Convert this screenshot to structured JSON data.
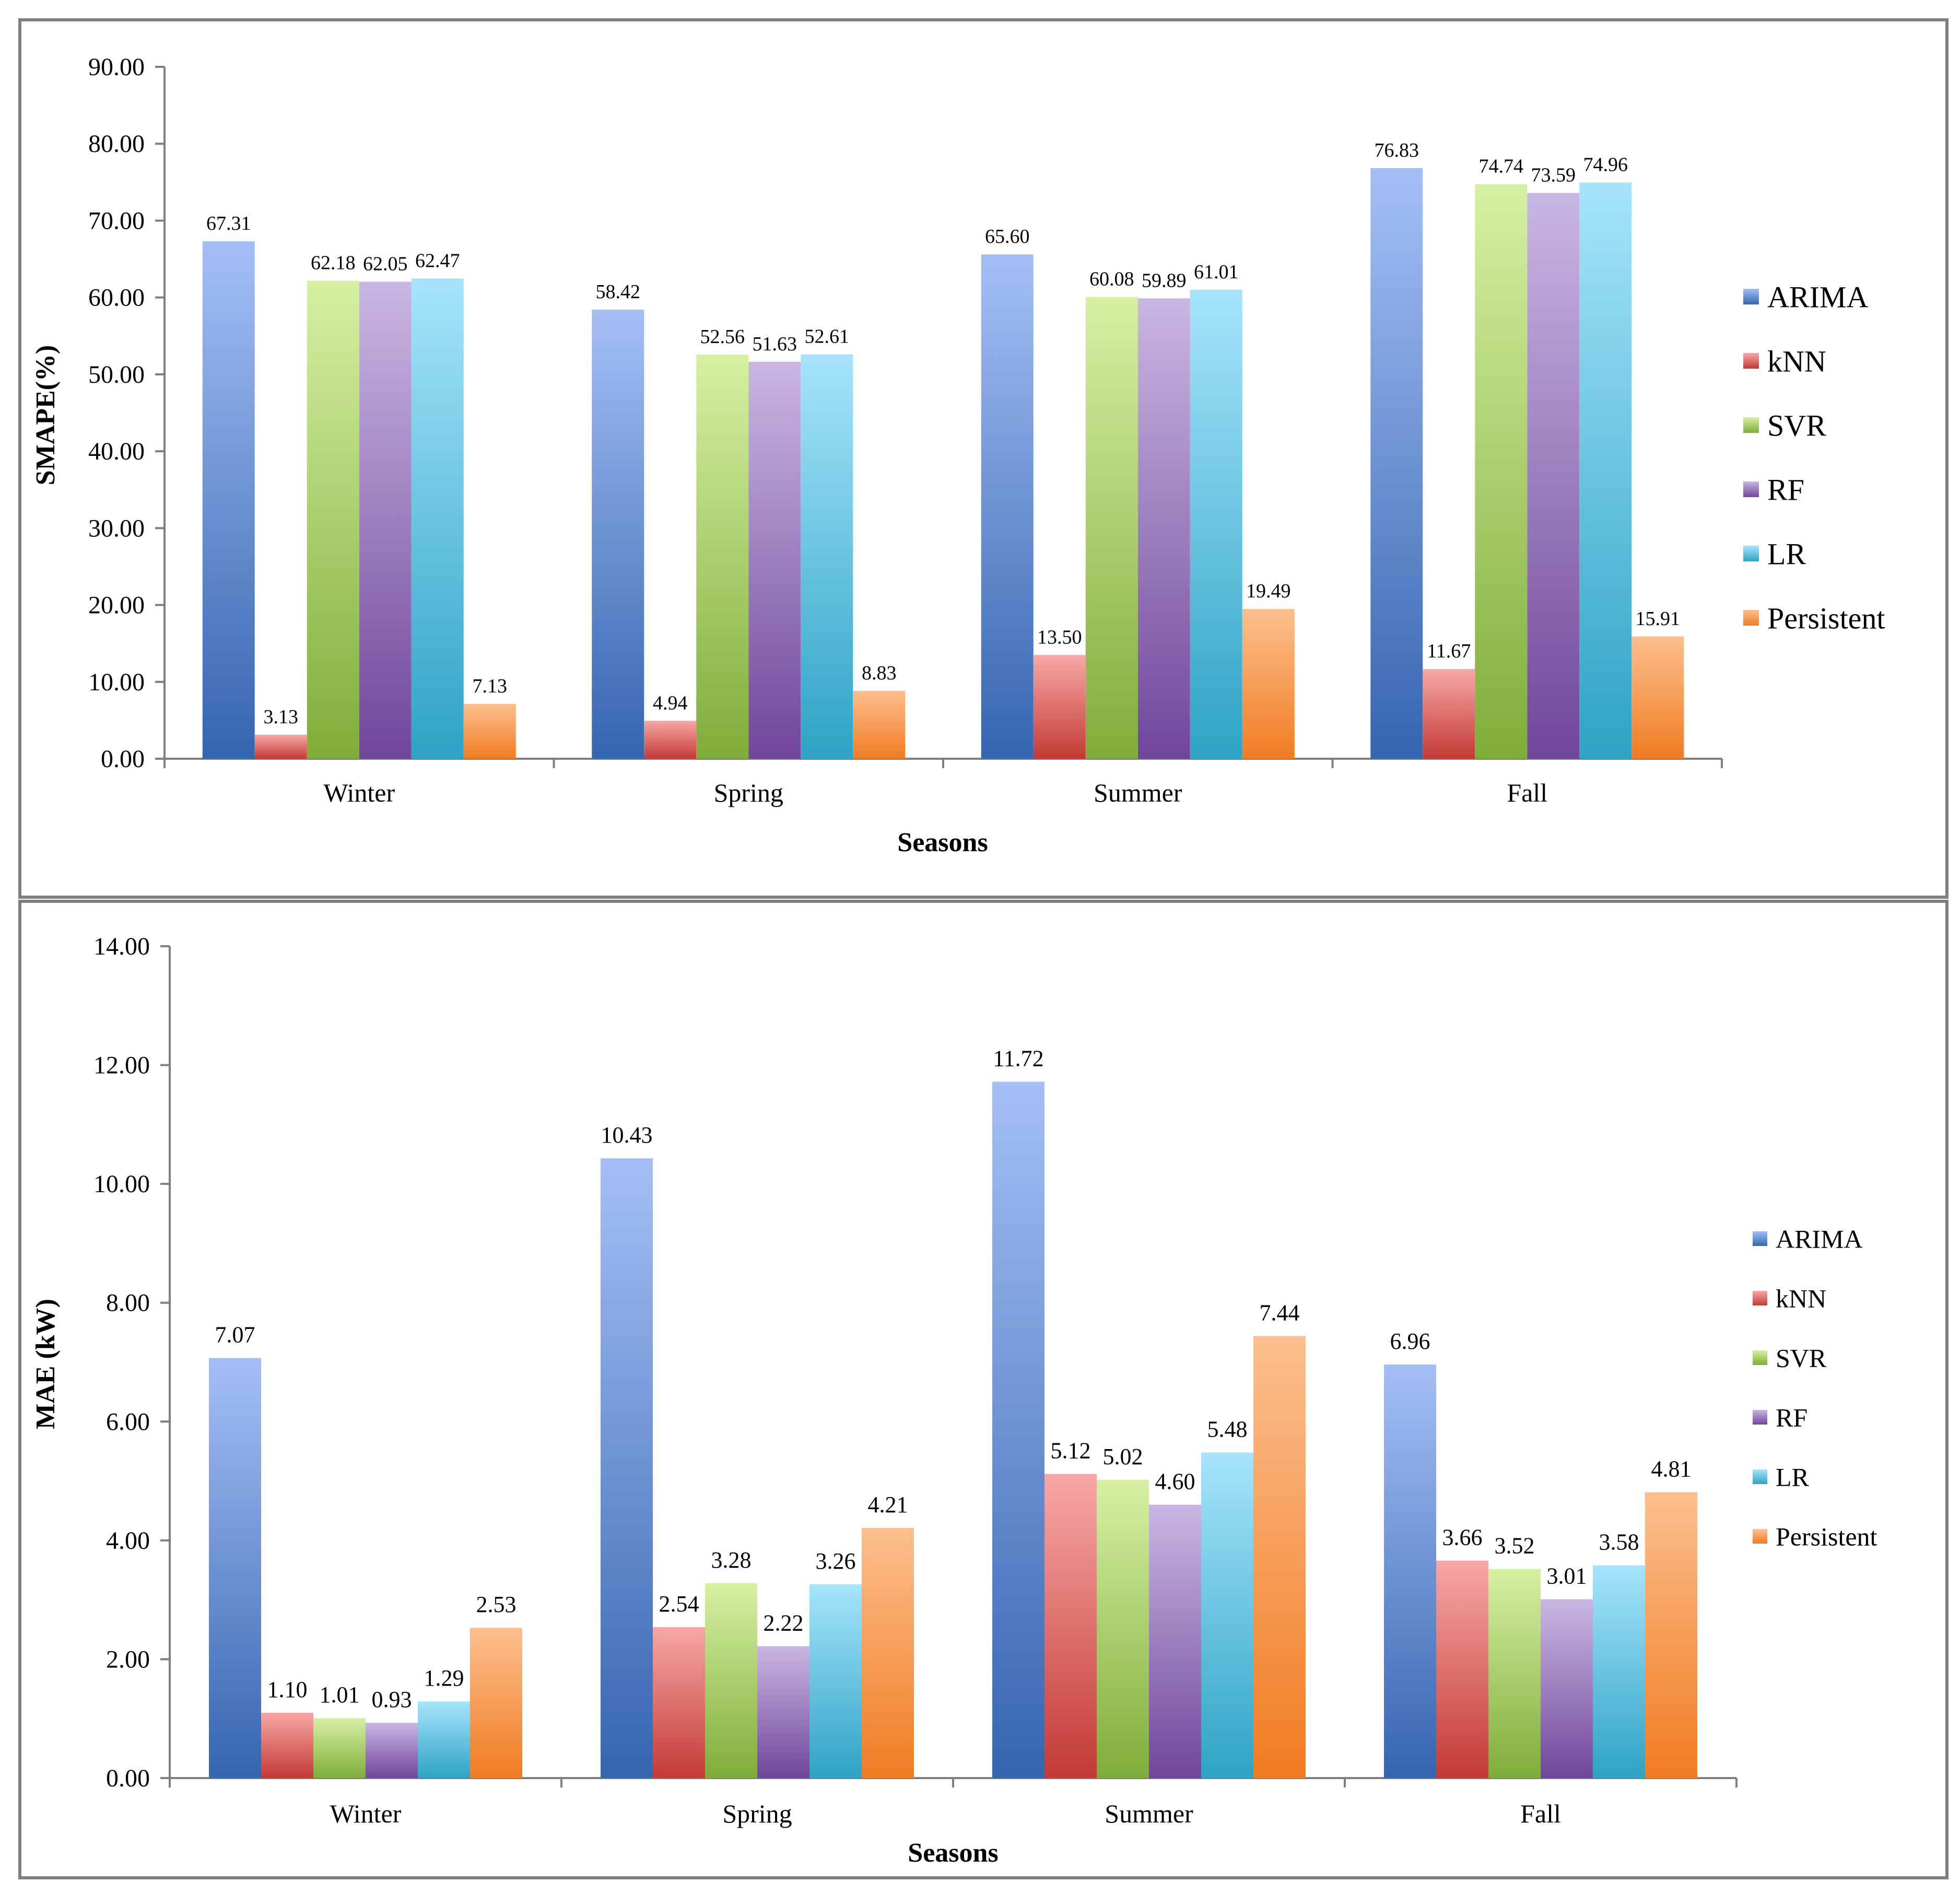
{
  "colors": {
    "ARIMA": [
      "#a4bff5",
      "#3565b0"
    ],
    "kNN": [
      "#f7a8a6",
      "#c33a36"
    ],
    "SVR": [
      "#d6f0a3",
      "#7fad3a"
    ],
    "RF": [
      "#c9b6e2",
      "#70469a"
    ],
    "LR": [
      "#a6e4fb",
      "#2ea3c5"
    ],
    "Persistent": [
      "#fcbf8e",
      "#f07c22"
    ],
    "frame": "#7f7f7f",
    "axis": "#7f7f7f"
  },
  "chart_data": [
    {
      "type": "bar",
      "xlabel": "Seasons",
      "ylabel": "SMAPE(%)",
      "ylim": [
        0,
        90
      ],
      "ytick_step": 10,
      "ytick_labels": [
        "0.00",
        "10.00",
        "20.00",
        "30.00",
        "40.00",
        "50.00",
        "60.00",
        "70.00",
        "80.00",
        "90.00"
      ],
      "legend_position": "right",
      "categories": [
        "Winter",
        "Spring",
        "Summer",
        "Fall"
      ],
      "series": [
        {
          "name": "ARIMA",
          "values": [
            67.31,
            58.42,
            65.6,
            76.83
          ],
          "labels": [
            "67.31",
            "58.42",
            "65.60",
            "76.83"
          ]
        },
        {
          "name": "kNN",
          "values": [
            3.13,
            4.94,
            13.5,
            11.67
          ],
          "labels": [
            "3.13",
            "4.94",
            "13.50",
            "11.67"
          ]
        },
        {
          "name": "SVR",
          "values": [
            62.18,
            52.56,
            60.08,
            74.74
          ],
          "labels": [
            "62.18",
            "52.56",
            "60.08",
            "74.74"
          ]
        },
        {
          "name": "RF",
          "values": [
            62.05,
            51.63,
            59.89,
            73.59
          ],
          "labels": [
            "62.05",
            "51.63",
            "59.89",
            "73.59"
          ]
        },
        {
          "name": "LR",
          "values": [
            62.47,
            52.61,
            61.01,
            74.96
          ],
          "labels": [
            "62.47",
            "52.61",
            "61.01",
            "74.96"
          ]
        },
        {
          "name": "Persistent",
          "values": [
            7.13,
            8.83,
            19.49,
            15.91
          ],
          "labels": [
            "7.13",
            "8.83",
            "19.49",
            "15.91"
          ]
        }
      ]
    },
    {
      "type": "bar",
      "xlabel": "Seasons",
      "ylabel": "MAE (kW)",
      "ylim": [
        0,
        14
      ],
      "ytick_step": 2,
      "ytick_labels": [
        "0.00",
        "2.00",
        "4.00",
        "6.00",
        "8.00",
        "10.00",
        "12.00",
        "14.00"
      ],
      "legend_position": "right",
      "categories": [
        "Winter",
        "Spring",
        "Summer",
        "Fall"
      ],
      "series": [
        {
          "name": "ARIMA",
          "values": [
            7.07,
            10.43,
            11.72,
            6.96
          ],
          "labels": [
            "7.07",
            "10.43",
            "11.72",
            "6.96"
          ]
        },
        {
          "name": "kNN",
          "values": [
            1.1,
            2.54,
            5.12,
            3.66
          ],
          "labels": [
            "1.10",
            "2.54",
            "5.12",
            "3.66"
          ]
        },
        {
          "name": "SVR",
          "values": [
            1.01,
            3.28,
            5.02,
            3.52
          ],
          "labels": [
            "1.01",
            "3.28",
            "5.02",
            "3.52"
          ]
        },
        {
          "name": "RF",
          "values": [
            0.93,
            2.22,
            4.6,
            3.01
          ],
          "labels": [
            "0.93",
            "2.22",
            "4.60",
            "3.01"
          ]
        },
        {
          "name": "LR",
          "values": [
            1.29,
            3.26,
            5.48,
            3.58
          ],
          "labels": [
            "1.29",
            "3.26",
            "5.48",
            "3.58"
          ]
        },
        {
          "name": "Persistent",
          "values": [
            2.53,
            4.21,
            7.44,
            4.81
          ],
          "labels": [
            "2.53",
            "4.21",
            "7.44",
            "4.81"
          ]
        }
      ]
    }
  ]
}
